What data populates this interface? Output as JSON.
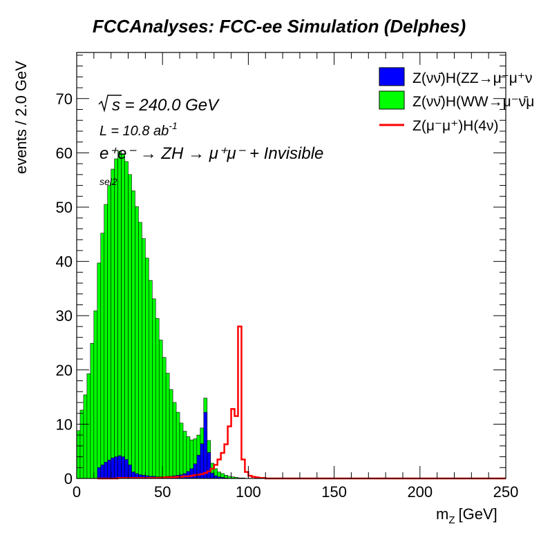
{
  "chart_data": {
    "type": "histogram",
    "title": "FCCAnalyses: FCC-ee Simulation (Delphes)",
    "xlabel": "m_Z [GeV]",
    "xlabel_main": "m",
    "xlabel_sub": "Z",
    "xlabel_unit": "[GeV]",
    "ylabel": "events / 2.0 GeV",
    "xlim": [
      0,
      250
    ],
    "ylim": [
      0,
      78.5
    ],
    "bin_width": 2.0,
    "x_ticks": [
      "0",
      "50",
      "100",
      "150",
      "200",
      "250"
    ],
    "x_tick_values": [
      0,
      50,
      100,
      150,
      200,
      250
    ],
    "y_ticks": [
      "0",
      "10",
      "20",
      "30",
      "40",
      "50",
      "60",
      "70"
    ],
    "y_tick_values": [
      0,
      10,
      20,
      30,
      40,
      50,
      60,
      70
    ],
    "grid": false,
    "legend_position": "top-right",
    "annotations": {
      "sqrt_s": "s = 240.0 GeV",
      "lumi": "L = 10.8 ab",
      "lumi_exp": "-1",
      "process": "e⁺e⁻ → ZH → μ⁺μ⁻ + Invisible",
      "selection": "sel2"
    },
    "series": [
      {
        "name": "Z(νν̄)H(WW→μ⁻ν̄μ",
        "style": "stacked-fill",
        "color": "#00ff00",
        "bin_edges_start": 0,
        "values": [
          8.8,
          12.6,
          15.4,
          19.3,
          24.9,
          30.9,
          37.7,
          42.7,
          47.5,
          50.6,
          53.2,
          54.9,
          56.1,
          55.8,
          54.9,
          53.5,
          51.8,
          49.2,
          46.5,
          43.6,
          40.1,
          36.1,
          32.7,
          29.2,
          25.2,
          22.0,
          19.0,
          16.0,
          13.5,
          11.6,
          9.5,
          7.8,
          6.4,
          5.3,
          4.6,
          3.7,
          2.9,
          2.6,
          2.2,
          1.8,
          1.3,
          0.9,
          0.7,
          0.5,
          0.4,
          0.3,
          0.2,
          0.1,
          0.1,
          0.0
        ]
      },
      {
        "name": "Z(νν̄)H(ZZ→μ⁻μ⁺ν",
        "style": "stacked-fill",
        "color": "#0000ff",
        "bin_edges_start": 0,
        "values": [
          0,
          0,
          0,
          0,
          0,
          0,
          2.0,
          2.5,
          3.0,
          3.4,
          3.8,
          4.0,
          4.2,
          4.0,
          3.5,
          2.5,
          1.2,
          0.9,
          0.7,
          0.6,
          0.5,
          0.4,
          0.4,
          0.3,
          0.3,
          0.3,
          0.4,
          0.4,
          0.5,
          0.6,
          0.7,
          0.9,
          1.3,
          1.8,
          2.7,
          4.3,
          6.4,
          12.2,
          4.8,
          1.0,
          0.5,
          0.3,
          0.2,
          0.1,
          0,
          0,
          0,
          0,
          0,
          0
        ]
      },
      {
        "name": "Z(μ⁻μ⁺)H(4ν)",
        "style": "line",
        "color": "#ff0000",
        "bin_edges_start": 0,
        "values": [
          0,
          0,
          0,
          0,
          0,
          0,
          0.1,
          0.1,
          0.1,
          0.1,
          0.1,
          0.1,
          0.1,
          0.1,
          0.1,
          0.1,
          0.1,
          0.1,
          0.1,
          0.2,
          0.2,
          0.2,
          0.2,
          0.3,
          0.3,
          0.4,
          0.4,
          0.5,
          0.6,
          0.7,
          0.8,
          1.0,
          1.3,
          1.8,
          2.5,
          3.5,
          4.7,
          6.3,
          9.6,
          12.8,
          11.5,
          28.0,
          3.5,
          1.2,
          0.5,
          0.3,
          0.2,
          0.1,
          0.1,
          0.0
        ],
        "bin_edges_start_override": 12
      }
    ],
    "legend": [
      {
        "label": "Z(νν̄)H(ZZ→μ⁻μ⁺ν",
        "color": "#0000ff",
        "kind": "box"
      },
      {
        "label": "Z(νν̄)H(WW→μ⁻ν̄μ",
        "color": "#00ff00",
        "kind": "box"
      },
      {
        "label": "Z(μ⁻μ⁺)H(4ν)",
        "color": "#ff0000",
        "kind": "line"
      }
    ]
  }
}
